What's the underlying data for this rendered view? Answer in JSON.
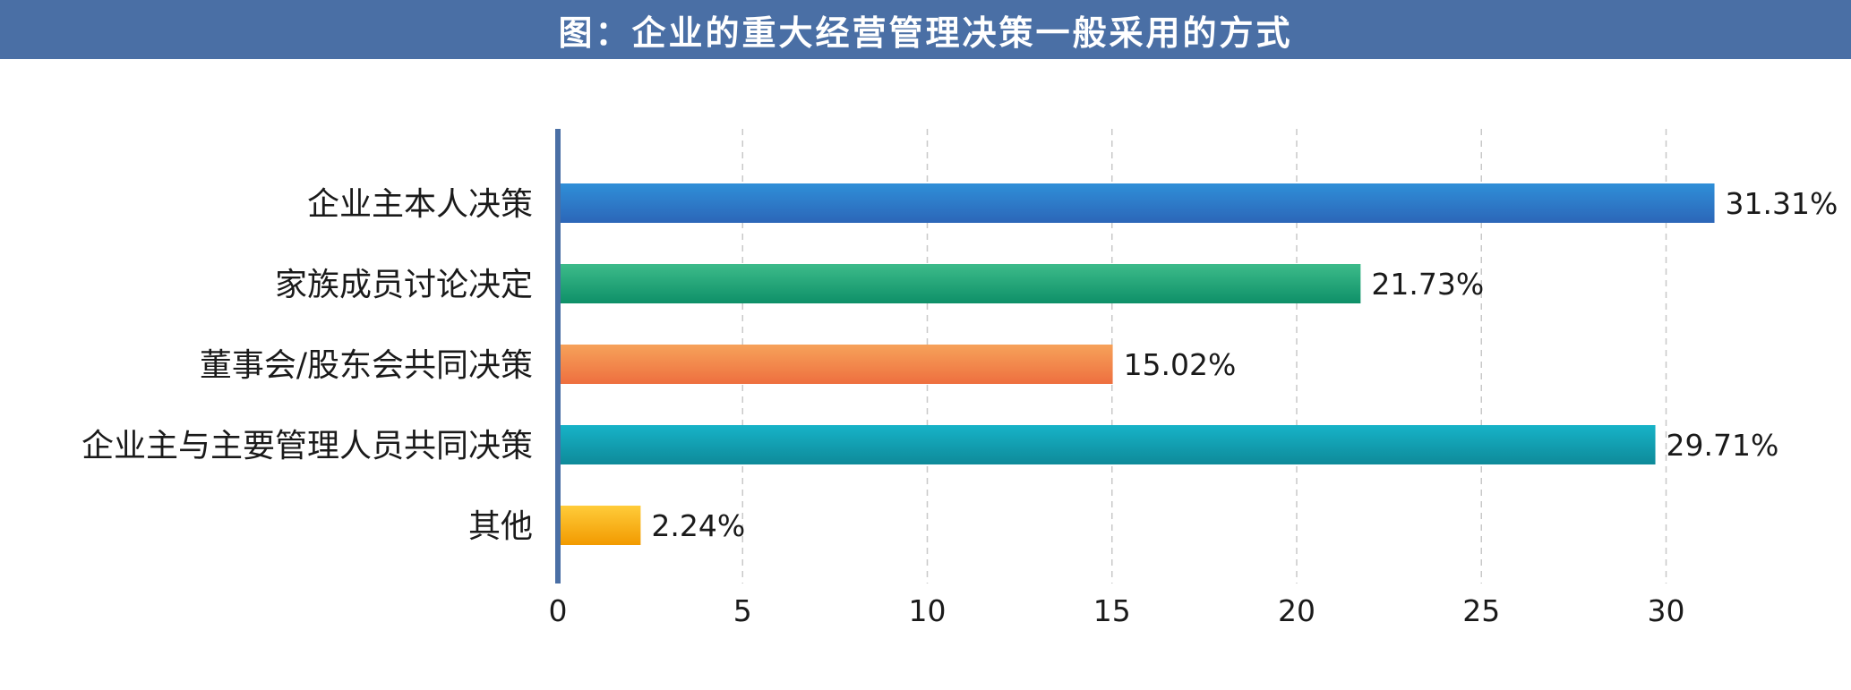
{
  "title": "图：企业的重大经营管理决策一般采用的方式",
  "chart_data": {
    "type": "bar",
    "orientation": "horizontal",
    "categories": [
      "企业主本人决策",
      "家族成员讨论决定",
      "董事会/股东会共同决策",
      "企业主与主要管理人员共同决策",
      "其他"
    ],
    "values": [
      31.31,
      21.73,
      15.02,
      29.71,
      2.24
    ],
    "value_labels": [
      "31.31%",
      "21.73%",
      "15.02%",
      "29.71%",
      "2.24%"
    ],
    "xlim": [
      0,
      30
    ],
    "x_ticks": [
      0,
      5,
      10,
      15,
      20,
      25,
      30
    ],
    "grid": "vertical dashed",
    "colors": [
      [
        "#2f8fd8",
        "#2c66b8"
      ],
      [
        "#3dbb8a",
        "#0e9068"
      ],
      [
        "#f6a25a",
        "#ee6f3f"
      ],
      [
        "#17b3c8",
        "#0e8a99"
      ],
      [
        "#ffcc3a",
        "#f29a00"
      ]
    ]
  }
}
